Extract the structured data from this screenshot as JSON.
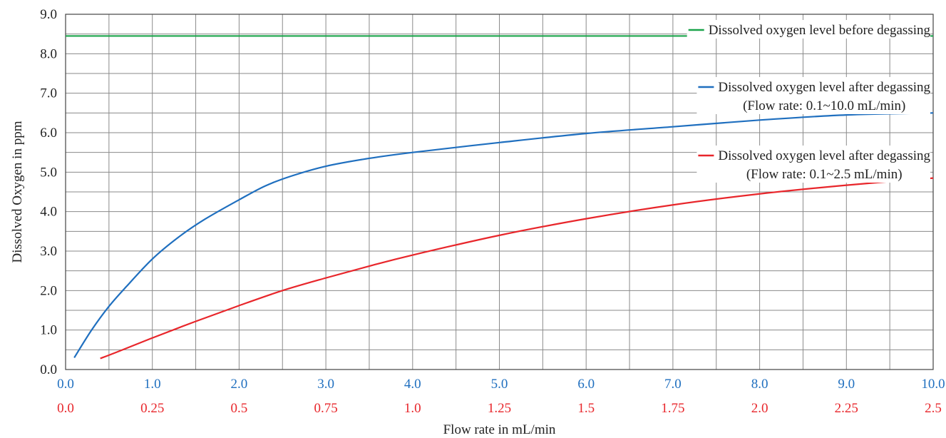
{
  "chart_data": {
    "type": "line",
    "xlabel": "Flow rate in mL/min",
    "ylabel": "Dissolved Oxygen in ppm",
    "xlim": [
      0,
      10
    ],
    "ylim": [
      0,
      9
    ],
    "grid": true,
    "x_ticks_primary": {
      "values": [
        0,
        1,
        2,
        3,
        4,
        5,
        6,
        7,
        8,
        9,
        10
      ],
      "labels": [
        "0.0",
        "1.0",
        "2.0",
        "3.0",
        "4.0",
        "5.0",
        "6.0",
        "7.0",
        "8.0",
        "9.0",
        "10.0"
      ],
      "color": "#1f6fbf"
    },
    "x_ticks_secondary": {
      "values": [
        0,
        1,
        2,
        3,
        4,
        5,
        6,
        7,
        8,
        9,
        10
      ],
      "labels": [
        "0.0",
        "0.25",
        "0.5",
        "0.75",
        "1.0",
        "1.25",
        "1.5",
        "1.75",
        "2.0",
        "2.25",
        "2.5"
      ],
      "color": "#e8262b"
    },
    "y_ticks": {
      "values": [
        0,
        1,
        2,
        3,
        4,
        5,
        6,
        7,
        8,
        9
      ],
      "labels": [
        "0.0",
        "1.0",
        "2.0",
        "3.0",
        "4.0",
        "5.0",
        "6.0",
        "7.0",
        "8.0",
        "9.0"
      ]
    },
    "legend_position": "right",
    "series": [
      {
        "name": "Dissolved oxygen level before degassing",
        "legend_lines": [
          "Dissolved oxygen level before degassing"
        ],
        "color": "#1aa34a",
        "x": [
          0,
          10
        ],
        "y": [
          8.45,
          8.45
        ]
      },
      {
        "name": "Dissolved oxygen level after degassing (Flow rate: 0.1~10.0 mL/min)",
        "legend_lines": [
          "Dissolved oxygen level after degassing",
          "(Flow rate: 0.1~10.0 mL/min)"
        ],
        "color": "#1f6fbf",
        "x": [
          0.1,
          0.3,
          0.5,
          0.7,
          1.0,
          1.3,
          1.6,
          2.0,
          2.3,
          2.6,
          3.0,
          3.5,
          4.0,
          5.0,
          6.0,
          7.0,
          8.0,
          9.0,
          10.0
        ],
        "y": [
          0.3,
          1.0,
          1.6,
          2.1,
          2.8,
          3.35,
          3.8,
          4.3,
          4.65,
          4.9,
          5.15,
          5.35,
          5.5,
          5.75,
          5.98,
          6.15,
          6.32,
          6.45,
          6.5
        ]
      },
      {
        "name": "Dissolved oxygen level after degassing (Flow rate: 0.1~2.5 mL/min)",
        "legend_lines": [
          "Dissolved oxygen level after degassing",
          "(Flow rate: 0.1~2.5 mL/min)"
        ],
        "color": "#e8262b",
        "x": [
          0.4,
          0.6,
          1.0,
          1.5,
          2.0,
          2.5,
          3.0,
          3.5,
          4.0,
          5.0,
          6.0,
          7.0,
          8.0,
          9.0,
          10.0
        ],
        "y": [
          0.28,
          0.45,
          0.8,
          1.22,
          1.62,
          2.0,
          2.32,
          2.62,
          2.9,
          3.4,
          3.82,
          4.17,
          4.45,
          4.67,
          4.85
        ]
      }
    ]
  }
}
